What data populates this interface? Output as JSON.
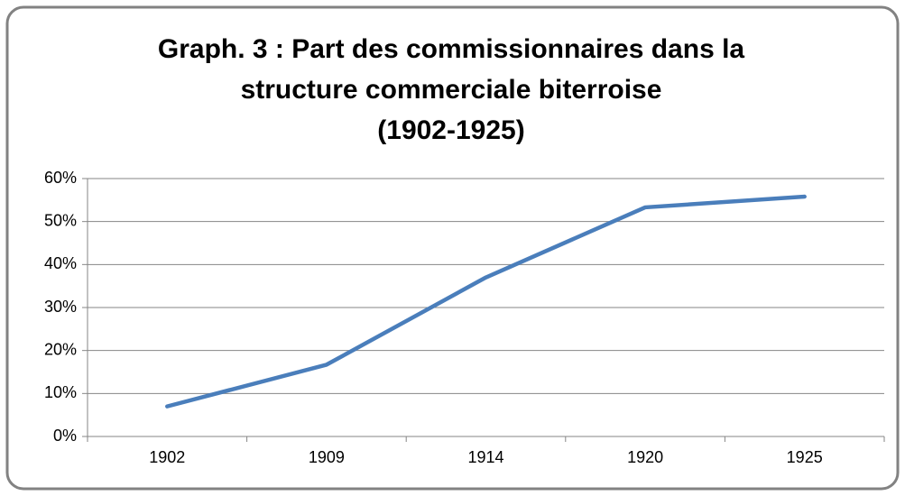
{
  "chart_data": {
    "type": "line",
    "title": [
      "Graph. 3  : Part des commissionnaires dans la",
      "structure commerciale biterroise",
      "(1902-1925)"
    ],
    "categories": [
      "1902",
      "1909",
      "1914",
      "1920",
      "1925"
    ],
    "values": [
      7,
      16.7,
      37,
      53.3,
      55.8
    ],
    "color": "#4a7ebb",
    "ylim": [
      0,
      60
    ],
    "yticks": [
      {
        "value": 0,
        "label": "0%"
      },
      {
        "value": 10,
        "label": "10%"
      },
      {
        "value": 20,
        "label": "20%"
      },
      {
        "value": 30,
        "label": "30%"
      },
      {
        "value": 40,
        "label": "40%"
      },
      {
        "value": 50,
        "label": "50%"
      },
      {
        "value": 60,
        "label": "60%"
      }
    ],
    "grid": true
  }
}
